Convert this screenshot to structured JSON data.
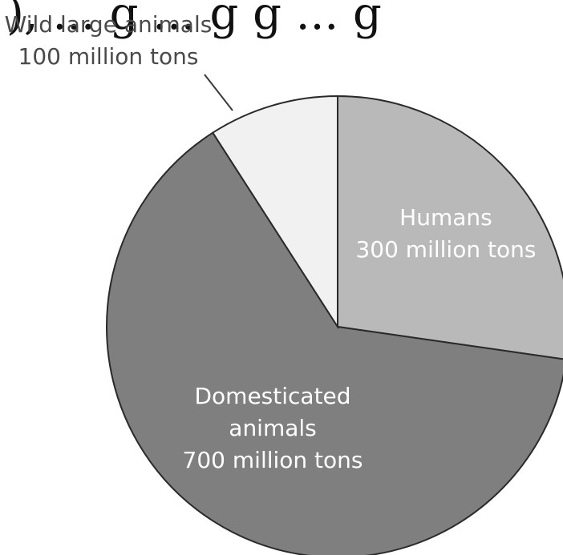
{
  "header_fragment": "), ... g ... g g ... g",
  "chart_data": {
    "type": "pie",
    "title": "",
    "slices": [
      {
        "label_lines": [
          "Humans",
          "300 million tons"
        ],
        "value": 300,
        "color": "#b9b9b9"
      },
      {
        "label_lines": [
          "Domesticated",
          "animals",
          "700 million tons"
        ],
        "value": 700,
        "color": "#7f7f7f"
      },
      {
        "label_lines": [
          "Wild large animals",
          "100 million tons"
        ],
        "value": 100,
        "color": "#f1f1f1"
      }
    ],
    "start_angle_deg": 0,
    "direction": "clockwise"
  }
}
